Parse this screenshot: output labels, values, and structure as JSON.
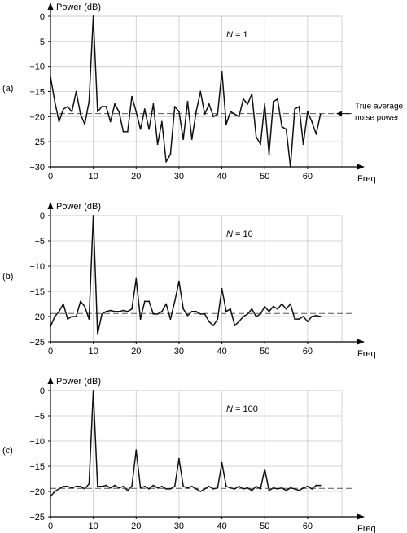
{
  "chart_data": [
    {
      "type": "line",
      "panel_label": "(a)",
      "ylabel": "Power (dB)",
      "xlabel": "Freq",
      "annotation_label": "N = 1",
      "annotation_var": "N",
      "annotation_rest": " = 1",
      "reference_label_line1": "True average",
      "reference_label_line2": "noise power",
      "reference_level": -19.4,
      "ylim": [
        -30,
        0
      ],
      "xlim": [
        0,
        68
      ],
      "yticks": [
        0,
        -5,
        -10,
        -15,
        -20,
        -25,
        -30
      ],
      "xticks": [
        0,
        10,
        20,
        30,
        40,
        50,
        60
      ],
      "grid": true,
      "x": [
        0,
        1,
        2,
        3,
        4,
        5,
        6,
        7,
        8,
        9,
        10,
        11,
        12,
        13,
        14,
        15,
        16,
        17,
        18,
        19,
        20,
        21,
        22,
        23,
        24,
        25,
        26,
        27,
        28,
        29,
        30,
        31,
        32,
        33,
        34,
        35,
        36,
        37,
        38,
        39,
        40,
        41,
        42,
        43,
        44,
        45,
        46,
        47,
        48,
        49,
        50,
        51,
        52,
        53,
        54,
        55,
        56,
        57,
        58,
        59,
        60,
        61,
        62,
        63
      ],
      "values": [
        -12,
        -17,
        -21,
        -18.5,
        -18,
        -19,
        -15,
        -19.5,
        -21.5,
        -17,
        0,
        -19,
        -18,
        -18,
        -21,
        -17.5,
        -19,
        -23,
        -23,
        -16,
        -19,
        -22.5,
        -18.5,
        -22.5,
        -17.5,
        -25.5,
        -21,
        -29,
        -27.5,
        -18,
        -19,
        -24.5,
        -17,
        -24.5,
        -19,
        -15,
        -19.5,
        -17.5,
        -20,
        -19.5,
        -11,
        -21.5,
        -19,
        -19.5,
        -20,
        -16.5,
        -17.5,
        -15.5,
        -24,
        -25.5,
        -17.5,
        -27.5,
        -17,
        -16.5,
        -22,
        -22.5,
        -30,
        -18.5,
        -18,
        -25.5,
        -19,
        -21,
        -23.5,
        -19.5
      ]
    },
    {
      "type": "line",
      "panel_label": "(b)",
      "ylabel": "Power (dB)",
      "xlabel": "Freq",
      "annotation_label": "N = 10",
      "annotation_var": "N",
      "annotation_rest": " = 10",
      "reference_level": -19.4,
      "ylim": [
        -25,
        0
      ],
      "xlim": [
        0,
        68
      ],
      "yticks": [
        0,
        -5,
        -10,
        -15,
        -20,
        -25
      ],
      "xticks": [
        0,
        10,
        20,
        30,
        40,
        50,
        60
      ],
      "grid": true,
      "x": [
        0,
        1,
        2,
        3,
        4,
        5,
        6,
        7,
        8,
        9,
        10,
        11,
        12,
        13,
        14,
        15,
        16,
        17,
        18,
        19,
        20,
        21,
        22,
        23,
        24,
        25,
        26,
        27,
        28,
        29,
        30,
        31,
        32,
        33,
        34,
        35,
        36,
        37,
        38,
        39,
        40,
        41,
        42,
        43,
        44,
        45,
        46,
        47,
        48,
        49,
        50,
        51,
        52,
        53,
        54,
        55,
        56,
        57,
        58,
        59,
        60,
        61,
        62,
        63
      ],
      "values": [
        -22,
        -20,
        -19,
        -17.5,
        -20.5,
        -20,
        -20,
        -17,
        -18,
        -20.5,
        0,
        -23.5,
        -19.5,
        -19,
        -18.8,
        -19,
        -19,
        -18.8,
        -19,
        -18.5,
        -12.5,
        -20.5,
        -17,
        -17,
        -19.5,
        -19.5,
        -19,
        -17.5,
        -20.5,
        -17,
        -13,
        -18.5,
        -19.8,
        -19,
        -19,
        -19.5,
        -19.5,
        -21,
        -21.8,
        -20.5,
        -14.5,
        -19,
        -18.5,
        -21.8,
        -21,
        -20,
        -19.5,
        -18.5,
        -20,
        -19.5,
        -18,
        -19,
        -18,
        -18.5,
        -17.5,
        -18.5,
        -17.5,
        -20.5,
        -20.5,
        -20,
        -21,
        -20,
        -19.8,
        -20
      ]
    },
    {
      "type": "line",
      "panel_label": "(c)",
      "ylabel": "Power (dB)",
      "xlabel": "Freq",
      "annotation_label": "N = 100",
      "annotation_var": "N",
      "annotation_rest": " = 100",
      "reference_level": -19.4,
      "ylim": [
        -25,
        0
      ],
      "xlim": [
        0,
        68
      ],
      "yticks": [
        0,
        -5,
        -10,
        -15,
        -20,
        -25
      ],
      "xticks": [
        0,
        10,
        20,
        30,
        40,
        50,
        60
      ],
      "grid": true,
      "x": [
        0,
        1,
        2,
        3,
        4,
        5,
        6,
        7,
        8,
        9,
        10,
        11,
        12,
        13,
        14,
        15,
        16,
        17,
        18,
        19,
        20,
        21,
        22,
        23,
        24,
        25,
        26,
        27,
        28,
        29,
        30,
        31,
        32,
        33,
        34,
        35,
        36,
        37,
        38,
        39,
        40,
        41,
        42,
        43,
        44,
        45,
        46,
        47,
        48,
        49,
        50,
        51,
        52,
        53,
        54,
        55,
        56,
        57,
        58,
        59,
        60,
        61,
        62,
        63
      ],
      "values": [
        -21,
        -20,
        -19.5,
        -19,
        -19,
        -19.3,
        -19,
        -19,
        -19.5,
        -18.5,
        0,
        -19,
        -19,
        -18.8,
        -19.3,
        -18.8,
        -19.3,
        -19,
        -19.8,
        -19,
        -11.8,
        -19.3,
        -19,
        -19.5,
        -18.8,
        -19.3,
        -19,
        -19.5,
        -19.5,
        -19,
        -13.5,
        -19,
        -19.3,
        -19,
        -19.5,
        -20,
        -19.5,
        -19,
        -19.5,
        -19.3,
        -14.3,
        -19,
        -19.3,
        -19.5,
        -19,
        -19.5,
        -19.3,
        -19.8,
        -19,
        -19.5,
        -15.6,
        -19.8,
        -19.3,
        -19.5,
        -19.3,
        -19.8,
        -19.3,
        -19.5,
        -19.8,
        -19.3,
        -19,
        -19.5,
        -18.8,
        -18.8
      ]
    }
  ]
}
